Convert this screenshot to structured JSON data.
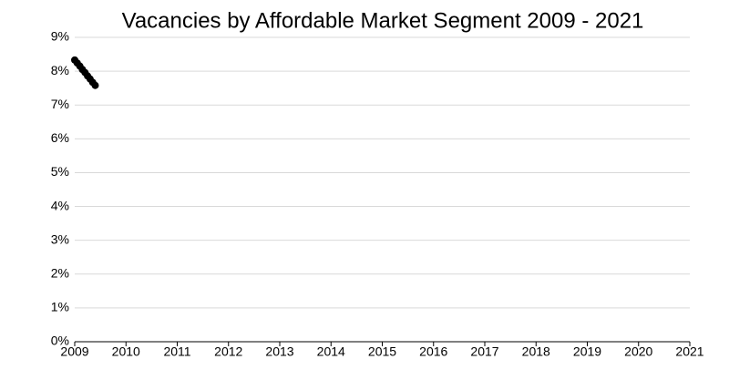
{
  "chart_data": {
    "type": "line",
    "title": "Vacancies by Affordable Market Segment 2009 - 2021",
    "x": [
      2009,
      2009.05,
      2009.1,
      2009.15,
      2009.2,
      2009.25,
      2009.3,
      2009.35,
      2009.4
    ],
    "values": [
      8.33,
      8.24,
      8.15,
      8.05,
      7.96,
      7.86,
      7.77,
      7.67,
      7.58
    ],
    "color": "#000000",
    "xlim": [
      2009,
      2021
    ],
    "xticks": [
      2009,
      2010,
      2011,
      2012,
      2013,
      2014,
      2015,
      2016,
      2017,
      2018,
      2019,
      2020,
      2021
    ],
    "ylim": [
      0,
      9
    ],
    "yticks": [
      {
        "value": 0,
        "label": "0%"
      },
      {
        "value": 1,
        "label": "1%"
      },
      {
        "value": 2,
        "label": "2%"
      },
      {
        "value": 3,
        "label": "3%"
      },
      {
        "value": 4,
        "label": "4%"
      },
      {
        "value": 5,
        "label": "5%"
      },
      {
        "value": 6,
        "label": "6%"
      },
      {
        "value": 7,
        "label": "7%"
      },
      {
        "value": 8,
        "label": "8%"
      },
      {
        "value": 9,
        "label": "9%"
      }
    ],
    "grid": true
  }
}
